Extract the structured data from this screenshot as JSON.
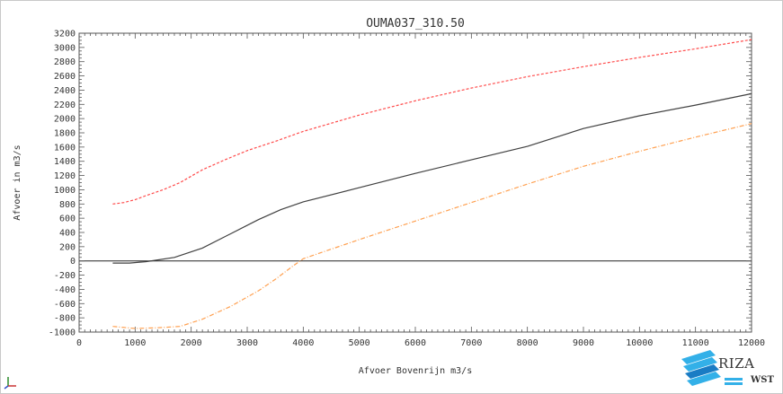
{
  "chart_data": {
    "type": "line",
    "title": "OUMA037_310.50",
    "xlabel": "Afvoer Bovenrijn m3/s",
    "ylabel": "Afvoer in m3/s",
    "xlim": [
      0,
      12000
    ],
    "ylim": [
      -1000,
      3200
    ],
    "x_ticks": [
      0,
      1000,
      2000,
      3000,
      4000,
      5000,
      6000,
      7000,
      8000,
      9000,
      10000,
      11000,
      12000
    ],
    "y_ticks": [
      -1000,
      -800,
      -600,
      -400,
      -200,
      0,
      200,
      400,
      600,
      800,
      1000,
      1200,
      1400,
      1600,
      1800,
      2000,
      2200,
      2400,
      2600,
      2800,
      3000,
      3200
    ],
    "grid": false,
    "series": [
      {
        "color": "#ff4b4b",
        "style": "dashed",
        "x": [
          600,
          800,
          1000,
          1200,
          1500,
          1800,
          2200,
          2600,
          3000,
          3500,
          4000,
          5000,
          6000,
          7000,
          8000,
          9000,
          10000,
          11000,
          12000
        ],
        "y": [
          800,
          820,
          860,
          920,
          1000,
          1100,
          1280,
          1420,
          1550,
          1680,
          1820,
          2050,
          2250,
          2430,
          2590,
          2730,
          2860,
          2980,
          3110
        ]
      },
      {
        "color": "#404040",
        "style": "solid",
        "x": [
          600,
          900,
          1200,
          1700,
          2200,
          2700,
          3200,
          3600,
          4000,
          5000,
          6000,
          7000,
          8000,
          9000,
          10000,
          11000,
          12000
        ],
        "y": [
          -30,
          -30,
          -10,
          50,
          180,
          380,
          580,
          720,
          830,
          1030,
          1230,
          1420,
          1610,
          1860,
          2040,
          2190,
          2350
        ]
      },
      {
        "color": "#ffa050",
        "style": "dashdot",
        "x": [
          600,
          1000,
          1400,
          1800,
          2200,
          2700,
          3200,
          3500,
          3800,
          4000,
          5000,
          6000,
          7000,
          8000,
          9000,
          10000,
          11000,
          12000
        ],
        "y": [
          -920,
          -950,
          -940,
          -920,
          -820,
          -640,
          -420,
          -260,
          -80,
          30,
          300,
          560,
          820,
          1080,
          1330,
          1540,
          1740,
          1930
        ]
      }
    ]
  },
  "logo": {
    "text": "RIZA",
    "sub": "WST",
    "colors": {
      "primary": "#33b0e8",
      "dark": "#1a7cc4"
    }
  },
  "corner_icon": "xyz-axes-icon"
}
